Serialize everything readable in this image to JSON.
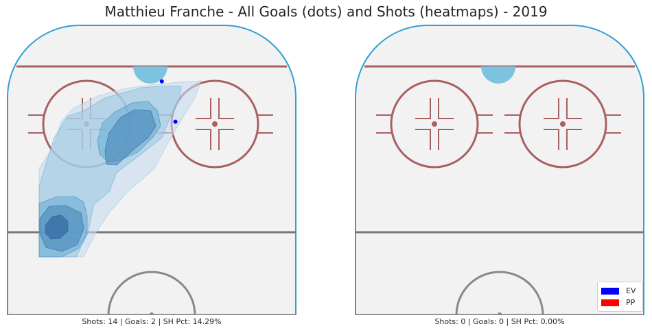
{
  "title": "Matthieu Franche - All Goals (dots) and Shots (heatmaps) - 2019",
  "panels": [
    {
      "caption": "Shots: 14 | Goals: 2 | SH Pct: 14.29%",
      "heatmap": [
        {
          "level": 1,
          "points": [
            [
              47,
              339
            ],
            [
              47,
              210
            ],
            [
              69,
              176
            ],
            [
              79,
              142
            ],
            [
              97,
              122
            ],
            [
              132,
              104
            ],
            [
              173,
              93
            ],
            [
              210,
              88
            ],
            [
              249,
              84
            ],
            [
              283,
              82
            ],
            [
              274,
              107
            ],
            [
              253,
              141
            ],
            [
              233,
              176
            ],
            [
              215,
              210
            ],
            [
              176,
              244
            ],
            [
              148,
              276
            ],
            [
              129,
              305
            ],
            [
              112,
              339
            ]
          ]
        },
        {
          "level": 2,
          "points": [
            [
              47,
              339
            ],
            [
              47,
              236
            ],
            [
              56,
              206
            ],
            [
              69,
              165
            ],
            [
              88,
              134
            ],
            [
              111,
              126
            ],
            [
              143,
              107
            ],
            [
              196,
              92
            ],
            [
              224,
              90
            ],
            [
              254,
              90
            ],
            [
              252,
              107
            ],
            [
              237,
              138
            ],
            [
              226,
              165
            ],
            [
              194,
              190
            ],
            [
              160,
              216
            ],
            [
              149,
              244
            ],
            [
              127,
              262
            ],
            [
              118,
              304
            ],
            [
              101,
              339
            ]
          ]
        },
        {
          "level": 3,
          "points": [
            [
              47,
              339
            ],
            [
              47,
              261
            ],
            [
              73,
              251
            ],
            [
              99,
              251
            ],
            [
              112,
              259
            ],
            [
              117,
              279
            ],
            [
              117,
              306
            ],
            [
              104,
              327
            ],
            [
              80,
              339
            ]
          ]
        },
        {
          "level": 3,
          "points": [
            [
              132,
              169
            ],
            [
              139,
              144
            ],
            [
              158,
              127
            ],
            [
              183,
              114
            ],
            [
              206,
              112
            ],
            [
              220,
              126
            ],
            [
              224,
              148
            ],
            [
              213,
              164
            ],
            [
              191,
              186
            ],
            [
              165,
              198
            ],
            [
              147,
              200
            ],
            [
              135,
              189
            ]
          ]
        },
        {
          "level": 4,
          "points": [
            [
              143,
              184
            ],
            [
              149,
              158
            ],
            [
              165,
              136
            ],
            [
              186,
              124
            ],
            [
              210,
              126
            ],
            [
              217,
              148
            ],
            [
              206,
              165
            ],
            [
              185,
              182
            ],
            [
              160,
              205
            ],
            [
              145,
              204
            ]
          ]
        },
        {
          "level": 4,
          "points": [
            [
              48,
              283
            ],
            [
              62,
              265
            ],
            [
              86,
              264
            ],
            [
              108,
              275
            ],
            [
              112,
              297
            ],
            [
              103,
              321
            ],
            [
              80,
              331
            ],
            [
              57,
              325
            ],
            [
              48,
              305
            ]
          ]
        },
        {
          "level": 5,
          "points": [
            [
              56,
              293
            ],
            [
              66,
              280
            ],
            [
              79,
              278
            ],
            [
              89,
              287
            ],
            [
              89,
              301
            ],
            [
              78,
              312
            ],
            [
              64,
              313
            ],
            [
              56,
              304
            ]
          ]
        }
      ],
      "goals": [
        {
          "x": 7,
          "y": 67,
          "strength": "EV"
        },
        {
          "x": 3,
          "y": 81,
          "strength": "EV"
        }
      ]
    },
    {
      "caption": "Shots: 0 | Goals: 0 | SH Pct: 0.00%",
      "heatmap": [],
      "goals": []
    }
  ],
  "legend": [
    {
      "label": "EV",
      "color": "#0000ff"
    },
    {
      "label": "PP",
      "color": "#ff0000"
    }
  ],
  "colors": {
    "rink_board": "#2fa0d0",
    "goal_line": "#a86060",
    "faceoff": "#a86060",
    "blue_line": "#777777",
    "center_circle": "#888888",
    "crease": "#7cc3e0",
    "ice": "#f2f2f2",
    "heat": [
      "#c6dbef",
      "#9ecae1",
      "#6baed6",
      "#4a87bb",
      "#2c5f98"
    ]
  }
}
